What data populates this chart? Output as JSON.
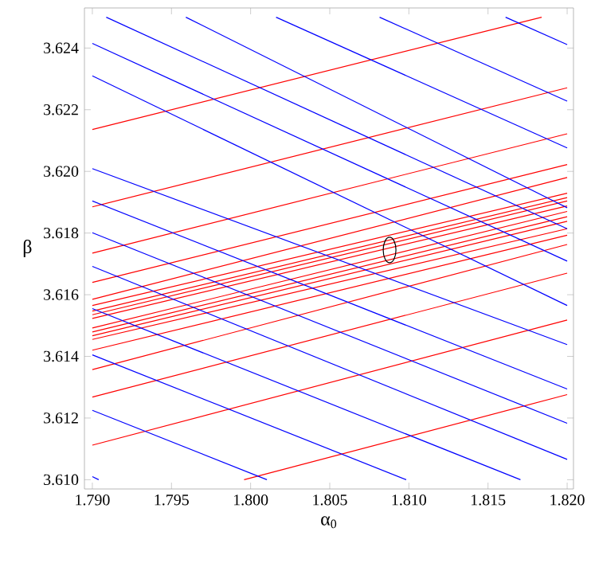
{
  "chart_data": {
    "type": "line",
    "xlabel": "α$_{0}$",
    "ylabel": "β",
    "xlim": [
      1.7895,
      1.8204
    ],
    "ylim": [
      3.6097,
      3.6253
    ],
    "xticks": [
      {
        "value": 1.79,
        "label": "1.790"
      },
      {
        "value": 1.795,
        "label": "1.795"
      },
      {
        "value": 1.8,
        "label": "1.800"
      },
      {
        "value": 1.805,
        "label": "1.805"
      },
      {
        "value": 1.81,
        "label": "1.810"
      },
      {
        "value": 1.815,
        "label": "1.815"
      },
      {
        "value": 1.82,
        "label": "1.820"
      }
    ],
    "yticks": [
      {
        "value": 3.61,
        "label": "3.610"
      },
      {
        "value": 3.612,
        "label": "3.612"
      },
      {
        "value": 3.614,
        "label": "3.614"
      },
      {
        "value": 3.616,
        "label": "3.616"
      },
      {
        "value": 3.618,
        "label": "3.618"
      },
      {
        "value": 3.62,
        "label": "3.620"
      },
      {
        "value": 3.622,
        "label": "3.622"
      },
      {
        "value": 3.624,
        "label": "3.624"
      }
    ],
    "series": [
      {
        "color": "#ff0000",
        "x": [
          1.79,
          1.81839
        ],
        "values": [
          3.62136,
          3.625
        ]
      },
      {
        "color": "#ff0000",
        "x": [
          1.79,
          1.82
        ],
        "values": [
          3.61885,
          3.62271
        ]
      },
      {
        "color": "#ff0000",
        "x": [
          1.79,
          1.82
        ],
        "values": [
          3.61735,
          3.62122
        ]
      },
      {
        "color": "#ff0000",
        "x": [
          1.79,
          1.82
        ],
        "values": [
          3.6164,
          3.62022
        ]
      },
      {
        "color": "#ff0000",
        "x": [
          1.79,
          1.82
        ],
        "values": [
          3.61585,
          3.6198
        ]
      },
      {
        "color": "#ff0000",
        "x": [
          1.79,
          1.82
        ],
        "values": [
          3.61565,
          3.61929
        ]
      },
      {
        "color": "#ff0000",
        "x": [
          1.79,
          1.82
        ],
        "values": [
          3.61547,
          3.61915
        ]
      },
      {
        "color": "#ff0000",
        "x": [
          1.79,
          1.82
        ],
        "values": [
          3.61535,
          3.61904
        ]
      },
      {
        "color": "#ff0000",
        "x": [
          1.79,
          1.82
        ],
        "values": [
          3.61523,
          3.61888
        ]
      },
      {
        "color": "#ff0000",
        "x": [
          1.79,
          1.82
        ],
        "values": [
          3.61492,
          3.6187
        ]
      },
      {
        "color": "#ff0000",
        "x": [
          1.79,
          1.82
        ],
        "values": [
          3.61479,
          3.61853
        ]
      },
      {
        "color": "#ff0000",
        "x": [
          1.79,
          1.82
        ],
        "values": [
          3.61467,
          3.61838
        ]
      },
      {
        "color": "#ff0000",
        "x": [
          1.79,
          1.82
        ],
        "values": [
          3.61455,
          3.61814
        ]
      },
      {
        "color": "#ff0000",
        "x": [
          1.79,
          1.82
        ],
        "values": [
          3.6142,
          3.61793
        ]
      },
      {
        "color": "#ff0000",
        "x": [
          1.79,
          1.82
        ],
        "values": [
          3.61357,
          3.61763
        ]
      },
      {
        "color": "#ff0000",
        "x": [
          1.79,
          1.82
        ],
        "values": [
          3.61268,
          3.6167
        ]
      },
      {
        "color": "#ff0000",
        "x": [
          1.79,
          1.82
        ],
        "values": [
          3.61112,
          3.61518
        ]
      },
      {
        "color": "#ff0000",
        "x": [
          1.79959,
          1.82
        ],
        "values": [
          3.61,
          3.61276
        ]
      },
      {
        "color": "#0000ff",
        "x": [
          1.81611,
          1.82
        ],
        "values": [
          3.625,
          3.62411
        ]
      },
      {
        "color": "#0000ff",
        "x": [
          1.80815,
          1.82
        ],
        "values": [
          3.625,
          3.62228
        ]
      },
      {
        "color": "#0000ff",
        "x": [
          1.80161,
          1.82
        ],
        "values": [
          3.625,
          3.62076
        ]
      },
      {
        "color": "#0000ff",
        "x": [
          1.79591,
          1.82
        ],
        "values": [
          3.625,
          3.61882
        ]
      },
      {
        "color": "#0000ff",
        "x": [
          1.79088,
          1.82
        ],
        "values": [
          3.625,
          3.61814
        ]
      },
      {
        "color": "#0000ff",
        "x": [
          1.79,
          1.82
        ],
        "values": [
          3.62415,
          3.61709
        ]
      },
      {
        "color": "#0000ff",
        "x": [
          1.79,
          1.82
        ],
        "values": [
          3.6231,
          3.61565
        ]
      },
      {
        "color": "#0000ff",
        "x": [
          1.79,
          1.82
        ],
        "values": [
          3.62009,
          3.61438
        ]
      },
      {
        "color": "#0000ff",
        "x": [
          1.79,
          1.82
        ],
        "values": [
          3.61904,
          3.61294
        ]
      },
      {
        "color": "#0000ff",
        "x": [
          1.79,
          1.82
        ],
        "values": [
          3.61801,
          3.61183
        ]
      },
      {
        "color": "#0000ff",
        "x": [
          1.79,
          1.82
        ],
        "values": [
          3.61692,
          3.61066
        ]
      },
      {
        "color": "#0000ff",
        "x": [
          1.79,
          1.81705
        ],
        "values": [
          3.61555,
          3.61
        ]
      },
      {
        "color": "#0000ff",
        "x": [
          1.79,
          1.80983
        ],
        "values": [
          3.61405,
          3.61
        ]
      },
      {
        "color": "#0000ff",
        "x": [
          1.79,
          1.80103
        ],
        "values": [
          3.61225,
          3.61
        ]
      },
      {
        "color": "#0000ff",
        "x": [
          1.79,
          1.7904
        ],
        "values": [
          3.6101,
          3.61
        ]
      }
    ]
  }
}
